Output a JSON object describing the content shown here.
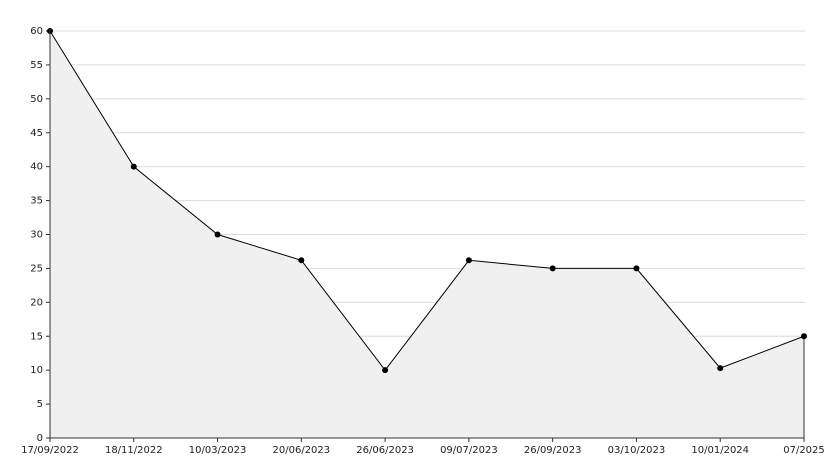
{
  "chart_data": {
    "type": "area",
    "categories": [
      "17/09/2022",
      "18/11/2022",
      "10/03/2023",
      "20/06/2023",
      "26/06/2023",
      "09/07/2023",
      "26/09/2023",
      "03/10/2023",
      "10/01/2024",
      "07/2025"
    ],
    "values": [
      60,
      40,
      30,
      26.2,
      10,
      26.2,
      25,
      25,
      10.3,
      15
    ],
    "color": "#000000",
    "fill": "#f0f0f0",
    "ylim": [
      0,
      60
    ],
    "yticks": [
      0,
      5,
      10,
      15,
      20,
      25,
      30,
      35,
      40,
      45,
      50,
      55,
      60
    ],
    "grid": true
  }
}
